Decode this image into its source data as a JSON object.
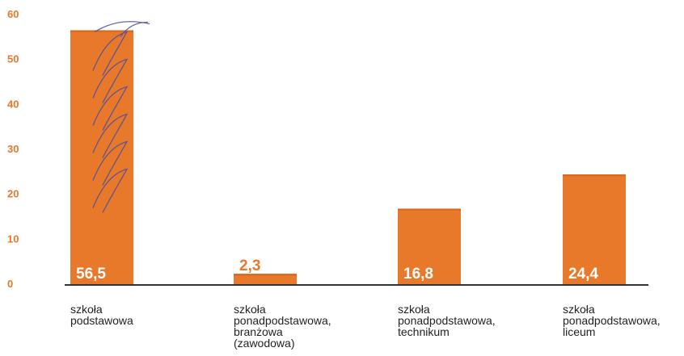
{
  "chart_data": {
    "type": "bar",
    "categories": [
      [
        "szkoła",
        "podstawowa"
      ],
      [
        "szkoła",
        "ponadpodstawowa,",
        "branżowa",
        "(zawodowa)"
      ],
      [
        "szkoła",
        "ponadpodstawowa,",
        "technikum"
      ],
      [
        "szkoła",
        "ponadpodstawowa,",
        "liceum"
      ]
    ],
    "values": [
      56.5,
      2.3,
      16.8,
      24.4
    ],
    "value_labels": [
      "56,5",
      "2,3",
      "16,8",
      "24,4"
    ],
    "y_ticks": [
      0,
      10,
      20,
      30,
      40,
      50,
      60
    ],
    "ylim": [
      0,
      60
    ],
    "title": "",
    "xlabel": "",
    "ylabel": "",
    "grid": false,
    "legend": "none",
    "colors": {
      "bar": "#E8782A",
      "bar_dark": "#D9661B",
      "tick_label": "#E8782A",
      "value_label_inside": "#ffffff",
      "value_label_outside": "#E8782A",
      "axis": "#333333",
      "scribble": "#4A4EA0"
    }
  }
}
